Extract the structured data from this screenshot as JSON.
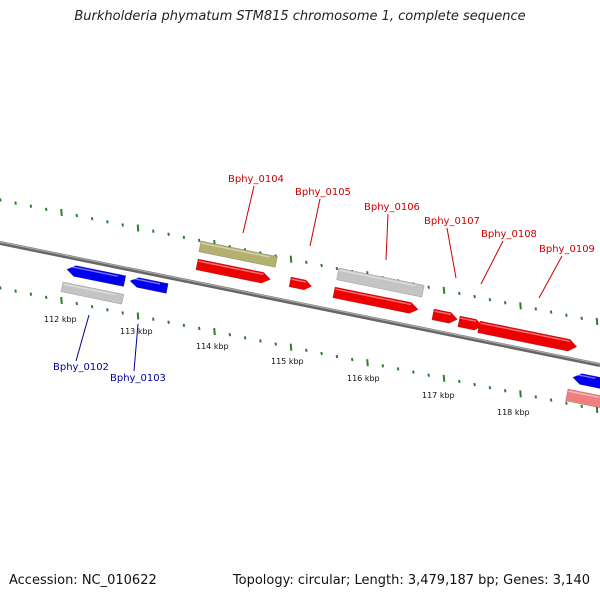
{
  "title": "Burkholderia phymatum STM815 chromosome 1, complete sequence",
  "footer": {
    "accession": "Accession: NC_010622",
    "summary": "Topology: circular; Length: 3,479,187 bp; Genes: 3,140"
  },
  "colors": {
    "forward_gene": "#ee0000",
    "reverse_gene": "#0000ee",
    "gray_gene": "#c4c4c4",
    "olive_gene": "#b4b070",
    "pink_gene": "#f08080",
    "forward_label": "#cc0000",
    "reverse_label": "#000099",
    "tick": "#2f7f2f",
    "backbone": "#777777"
  },
  "scale_labels": [
    "112 kbp",
    "113 kbp",
    "114 kbp",
    "115 kbp",
    "116 kbp",
    "117 kbp",
    "118 kbp"
  ],
  "gene_labels": [
    {
      "text": "Bphy_0102",
      "strand": "reverse"
    },
    {
      "text": "Bphy_0103",
      "strand": "reverse"
    },
    {
      "text": "Bphy_0104",
      "strand": "forward"
    },
    {
      "text": "Bphy_0105",
      "strand": "forward"
    },
    {
      "text": "Bphy_0106",
      "strand": "forward"
    },
    {
      "text": "Bphy_0107",
      "strand": "forward"
    },
    {
      "text": "Bphy_0108",
      "strand": "forward"
    },
    {
      "text": "Bphy_0109",
      "strand": "forward"
    }
  ]
}
